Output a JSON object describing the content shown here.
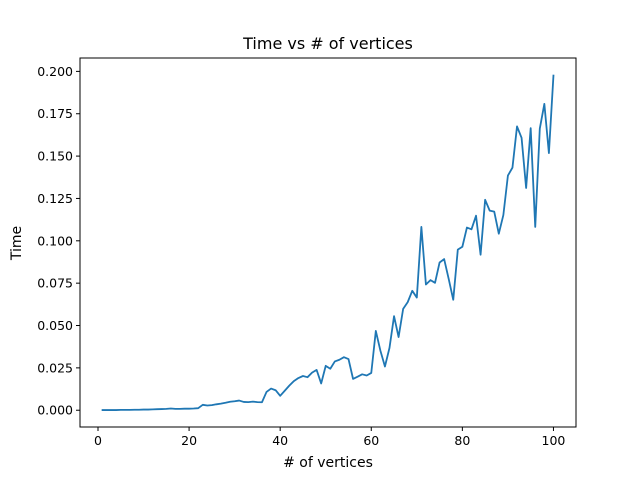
{
  "chart_data": {
    "type": "line",
    "title": "Time vs # of vertices",
    "xlabel": "# of vertices",
    "ylabel": "Time",
    "xlim": [
      -3.95,
      104.95
    ],
    "ylim": [
      -0.0099,
      0.2079
    ],
    "xticks": [
      0,
      20,
      40,
      60,
      80,
      100
    ],
    "xtick_labels": [
      "0",
      "20",
      "40",
      "60",
      "80",
      "100"
    ],
    "yticks": [
      0.0,
      0.025,
      0.05,
      0.075,
      0.1,
      0.125,
      0.15,
      0.175,
      0.2
    ],
    "ytick_labels": [
      "0.000",
      "0.025",
      "0.050",
      "0.075",
      "0.100",
      "0.125",
      "0.150",
      "0.175",
      "0.200"
    ],
    "grid": false,
    "series": [
      {
        "color": "#1f77b4",
        "x": [
          1,
          2,
          3,
          4,
          5,
          6,
          7,
          8,
          9,
          10,
          11,
          12,
          13,
          14,
          15,
          16,
          17,
          18,
          19,
          20,
          21,
          22,
          23,
          24,
          25,
          26,
          27,
          28,
          29,
          30,
          31,
          32,
          33,
          34,
          35,
          36,
          37,
          38,
          39,
          40,
          41,
          42,
          43,
          44,
          45,
          46,
          47,
          48,
          49,
          50,
          51,
          52,
          53,
          54,
          55,
          56,
          57,
          58,
          59,
          60,
          61,
          62,
          63,
          64,
          65,
          66,
          67,
          68,
          69,
          70,
          71,
          72,
          73,
          74,
          75,
          76,
          77,
          78,
          79,
          80,
          81,
          82,
          83,
          84,
          85,
          86,
          87,
          88,
          89,
          90,
          91,
          92,
          93,
          94,
          95,
          96,
          97,
          98,
          99,
          100
        ],
        "y": [
          0.0001,
          0.0001,
          0.0001,
          0.0001,
          0.0002,
          0.0002,
          0.0002,
          0.0003,
          0.0003,
          0.0004,
          0.0004,
          0.0005,
          0.0006,
          0.0007,
          0.0008,
          0.001,
          0.0008,
          0.0008,
          0.0009,
          0.0009,
          0.001,
          0.0012,
          0.0032,
          0.0028,
          0.003,
          0.0035,
          0.0039,
          0.0044,
          0.005,
          0.0053,
          0.0057,
          0.0049,
          0.0048,
          0.0051,
          0.0048,
          0.0047,
          0.0108,
          0.0128,
          0.0118,
          0.0085,
          0.0115,
          0.0145,
          0.0172,
          0.019,
          0.0202,
          0.0195,
          0.0222,
          0.0238,
          0.0158,
          0.0262,
          0.0245,
          0.0288,
          0.0298,
          0.0313,
          0.0302,
          0.0185,
          0.0198,
          0.0212,
          0.0205,
          0.022,
          0.0468,
          0.0352,
          0.0258,
          0.0368,
          0.0555,
          0.0432,
          0.0598,
          0.0638,
          0.0705,
          0.0665,
          0.1082,
          0.0742,
          0.0768,
          0.0752,
          0.0872,
          0.0892,
          0.0775,
          0.0652,
          0.0948,
          0.0965,
          0.1078,
          0.1068,
          0.1148,
          0.0918,
          0.1242,
          0.1178,
          0.1172,
          0.1042,
          0.1152,
          0.1385,
          0.1432,
          0.1675,
          0.1608,
          0.1312,
          0.1665,
          0.1082,
          0.1662,
          0.1808,
          0.1518,
          0.1975
        ]
      }
    ]
  }
}
